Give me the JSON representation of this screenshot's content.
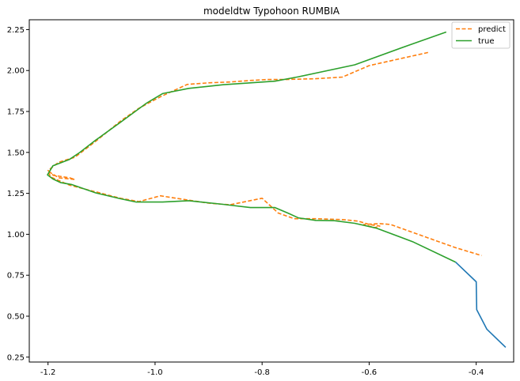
{
  "chart_data": {
    "type": "line",
    "title": "modeldtw  Typohoon RUMBIA",
    "xlabel": "",
    "ylabel": "",
    "xlim": [
      -1.235,
      -0.33
    ],
    "ylim": [
      0.22,
      2.31
    ],
    "xticks": [
      -1.2,
      -1.0,
      -0.8,
      -0.6,
      -0.4
    ],
    "xtick_labels": [
      "-1.2",
      "-1.0",
      "-0.8",
      "-0.6",
      "-0.4"
    ],
    "yticks": [
      0.25,
      0.5,
      0.75,
      1.0,
      1.25,
      1.5,
      1.75,
      2.0,
      2.25
    ],
    "ytick_labels": [
      "0.25",
      "0.50",
      "0.75",
      "1.00",
      "1.25",
      "1.50",
      "1.75",
      "2.00",
      "2.25"
    ],
    "legend_position": "top-right",
    "grid": false,
    "series": [
      {
        "name": "",
        "color": "#1f77b4",
        "style": "solid",
        "in_legend": false,
        "x": [
          -0.4385,
          -0.4,
          -0.399,
          -0.38,
          -0.345
        ],
        "y": [
          0.83,
          0.71,
          0.54,
          0.42,
          0.31
        ]
      },
      {
        "name": "predict",
        "color": "#ff7f0e",
        "style": "dashed",
        "in_legend": true,
        "x": [
          -0.49,
          -0.6,
          -0.65,
          -0.7,
          -0.76,
          -0.79,
          -0.82,
          -0.86,
          -0.9,
          -0.94,
          -0.99,
          -1.03,
          -1.065,
          -1.11,
          -1.15,
          -1.18,
          -1.2,
          -1.19,
          -1.16,
          -1.15,
          -1.18,
          -1.2,
          -1.195,
          -1.16,
          -1.1,
          -1.065,
          -1.03,
          -0.99,
          -0.95,
          -0.9,
          -0.86,
          -0.8,
          -0.77,
          -0.74,
          -0.7,
          -0.65,
          -0.62,
          -0.6,
          -0.58,
          -0.59,
          -0.61,
          -0.58,
          -0.56,
          -0.5,
          -0.44,
          -0.39
        ],
        "y": [
          2.11,
          2.03,
          1.96,
          1.95,
          1.945,
          1.945,
          1.94,
          1.93,
          1.925,
          1.915,
          1.84,
          1.77,
          1.69,
          1.57,
          1.47,
          1.44,
          1.39,
          1.36,
          1.345,
          1.335,
          1.345,
          1.385,
          1.35,
          1.3,
          1.25,
          1.22,
          1.2,
          1.235,
          1.215,
          1.19,
          1.18,
          1.22,
          1.13,
          1.095,
          1.095,
          1.09,
          1.08,
          1.06,
          1.05,
          1.04,
          1.06,
          1.065,
          1.06,
          0.99,
          0.92,
          0.87
        ]
      },
      {
        "name": "true",
        "color": "#2ca02c",
        "style": "solid",
        "in_legend": true,
        "x": [
          -0.456,
          -0.524,
          -0.627,
          -0.732,
          -0.776,
          -0.822,
          -0.873,
          -0.937,
          -0.986,
          -1.016,
          -1.065,
          -1.111,
          -1.141,
          -1.16,
          -1.191,
          -1.201,
          -1.191,
          -1.176,
          -1.155,
          -1.111,
          -1.065,
          -1.035,
          -0.986,
          -0.937,
          -0.873,
          -0.822,
          -0.776,
          -0.752,
          -0.732,
          -0.7,
          -0.665,
          -0.627,
          -0.586,
          -0.519,
          -0.4385
        ],
        "y": [
          2.235,
          2.157,
          2.035,
          1.962,
          1.935,
          1.925,
          1.913,
          1.891,
          1.859,
          1.801,
          1.683,
          1.575,
          1.499,
          1.457,
          1.418,
          1.363,
          1.338,
          1.315,
          1.303,
          1.253,
          1.217,
          1.197,
          1.197,
          1.205,
          1.183,
          1.163,
          1.163,
          1.13,
          1.1,
          1.085,
          1.083,
          1.067,
          1.037,
          0.955,
          0.83
        ]
      }
    ]
  }
}
